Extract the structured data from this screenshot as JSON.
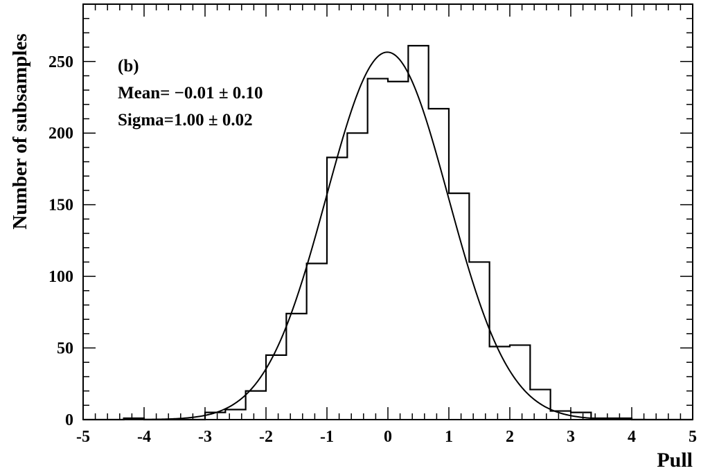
{
  "chart_data": {
    "type": "bar",
    "ylabel": "Number of subsamples",
    "xlabel": "Pull",
    "xlim": [
      -5,
      5
    ],
    "ylim": [
      0,
      290
    ],
    "x_ticks": [
      "-5",
      "-4",
      "-3",
      "-2",
      "-1",
      "0",
      "1",
      "2",
      "3",
      "4",
      "5"
    ],
    "y_ticks": [
      "0",
      "50",
      "100",
      "150",
      "200",
      "250"
    ],
    "annotations": [
      "(b)",
      "Mean= −0.01 ± 0.10",
      "Sigma=1.00 ± 0.02"
    ],
    "histogram": {
      "bin_width": 0.3333,
      "bin_centers": [
        -4.833,
        -4.5,
        -4.167,
        -3.833,
        -3.5,
        -3.167,
        -2.833,
        -2.5,
        -2.167,
        -1.833,
        -1.5,
        -1.167,
        -0.833,
        -0.5,
        -0.167,
        0.167,
        0.5,
        0.833,
        1.167,
        1.5,
        1.833,
        2.167,
        2.5,
        2.833,
        3.167,
        3.5,
        3.833,
        4.167,
        4.5,
        4.833
      ],
      "values": [
        0,
        0,
        1,
        0,
        0,
        0,
        5,
        7,
        20,
        45,
        74,
        109,
        183,
        200,
        238,
        236,
        261,
        217,
        158,
        110,
        51,
        52,
        21,
        6,
        5,
        1,
        1,
        0,
        0,
        0
      ]
    },
    "fit": {
      "type": "gaussian",
      "amplitude": 256.5,
      "mean": -0.01,
      "sigma": 1.0
    }
  }
}
